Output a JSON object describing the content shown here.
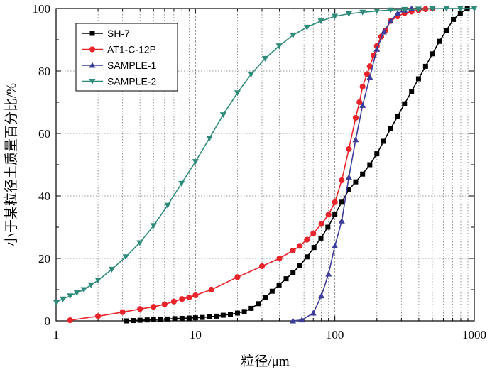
{
  "chart_data": {
    "type": "line",
    "xscale": "log",
    "xlim": [
      1,
      1000
    ],
    "ylim": [
      0,
      100
    ],
    "grid": true,
    "legend_position": "top-left",
    "xlabel": "粒径/μm",
    "ylabel": "小于某粒径土质量百分比/%",
    "xticks": [
      1,
      10,
      100,
      1000
    ],
    "xtick_labels": [
      "1",
      "10",
      "100",
      "1000"
    ],
    "yticks": [
      0,
      20,
      40,
      60,
      80,
      100
    ],
    "ytick_labels": [
      "0",
      "20",
      "40",
      "60",
      "80",
      "100"
    ],
    "series": [
      {
        "name": "SH-7",
        "color": "#000000",
        "marker": "square",
        "points": [
          [
            3.2,
            0.0
          ],
          [
            3.6,
            0.1
          ],
          [
            4.0,
            0.2
          ],
          [
            4.5,
            0.3
          ],
          [
            5.0,
            0.4
          ],
          [
            5.6,
            0.5
          ],
          [
            6.3,
            0.6
          ],
          [
            7.1,
            0.7
          ],
          [
            8.0,
            0.8
          ],
          [
            9.0,
            0.9
          ],
          [
            10.0,
            1.0
          ],
          [
            11.2,
            1.1
          ],
          [
            12.6,
            1.3
          ],
          [
            14.1,
            1.5
          ],
          [
            15.8,
            1.8
          ],
          [
            17.8,
            2.1
          ],
          [
            20.0,
            2.5
          ],
          [
            22.4,
            3.0
          ],
          [
            25.1,
            4.0
          ],
          [
            28.2,
            5.5
          ],
          [
            31.6,
            7.5
          ],
          [
            35.5,
            9.5
          ],
          [
            39.8,
            11.5
          ],
          [
            44.7,
            13.5
          ],
          [
            50.1,
            15.5
          ],
          [
            56.2,
            17.8
          ],
          [
            63.1,
            20.5
          ],
          [
            70.8,
            23.5
          ],
          [
            79.4,
            26.5
          ],
          [
            89.1,
            30.0
          ],
          [
            100,
            34.0
          ],
          [
            112,
            38.0
          ],
          [
            126,
            42.0
          ],
          [
            141,
            44.5
          ],
          [
            158,
            47.0
          ],
          [
            178,
            50.0
          ],
          [
            200,
            53.5
          ],
          [
            224,
            57.5
          ],
          [
            251,
            61.5
          ],
          [
            282,
            65.5
          ],
          [
            316,
            69.5
          ],
          [
            355,
            73.5
          ],
          [
            398,
            77.5
          ],
          [
            447,
            81.5
          ],
          [
            501,
            85.5
          ],
          [
            562,
            89.5
          ],
          [
            631,
            93.0
          ],
          [
            708,
            96.5
          ],
          [
            794,
            98.5
          ],
          [
            891,
            100
          ]
        ]
      },
      {
        "name": "AT1-C-12P",
        "color": "#e8242a",
        "marker": "circle",
        "points": [
          [
            1.26,
            0.2
          ],
          [
            2.0,
            1.5
          ],
          [
            3.0,
            2.8
          ],
          [
            4.0,
            3.8
          ],
          [
            5.0,
            4.5
          ],
          [
            6.0,
            5.3
          ],
          [
            7.0,
            6.2
          ],
          [
            8.0,
            7.0
          ],
          [
            9.0,
            7.5
          ],
          [
            10.0,
            8.2
          ],
          [
            13.0,
            10.0
          ],
          [
            20.0,
            14.0
          ],
          [
            30.0,
            17.5
          ],
          [
            40.0,
            20.0
          ],
          [
            50.0,
            22.5
          ],
          [
            56.0,
            24.0
          ],
          [
            63.0,
            26.0
          ],
          [
            70.0,
            28.0
          ],
          [
            80.0,
            31.0
          ],
          [
            90.0,
            34.0
          ],
          [
            100.0,
            38.0
          ],
          [
            112,
            45.0
          ],
          [
            126,
            55.0
          ],
          [
            141,
            65.0
          ],
          [
            150,
            70.0
          ],
          [
            158,
            75.0
          ],
          [
            170,
            79.0
          ],
          [
            178,
            81.5
          ],
          [
            190,
            85.0
          ],
          [
            200,
            88.0
          ],
          [
            215,
            91.0
          ],
          [
            230,
            93.0
          ],
          [
            251,
            96.0
          ],
          [
            282,
            97.5
          ],
          [
            316,
            98.5
          ],
          [
            355,
            99.0
          ],
          [
            398,
            99.5
          ],
          [
            447,
            99.8
          ],
          [
            501,
            100
          ]
        ]
      },
      {
        "name": "SAMPLE-1",
        "color": "#3c3c9a",
        "marker": "triangle-up",
        "points": [
          [
            50,
            0.0
          ],
          [
            58,
            0.3
          ],
          [
            70,
            2.5
          ],
          [
            80,
            8.0
          ],
          [
            90,
            15.0
          ],
          [
            100,
            24.0
          ],
          [
            112,
            32.0
          ],
          [
            126,
            46.0
          ],
          [
            141,
            58.0
          ],
          [
            158,
            69.0
          ],
          [
            178,
            78.0
          ],
          [
            200,
            87.0
          ],
          [
            224,
            92.5
          ],
          [
            251,
            96.0
          ],
          [
            282,
            98.5
          ],
          [
            316,
            99.5
          ],
          [
            355,
            100
          ]
        ]
      },
      {
        "name": "SAMPLE-2",
        "color": "#2e8b7a",
        "marker": "triangle-down",
        "points": [
          [
            1.0,
            6.0
          ],
          [
            1.12,
            7.0
          ],
          [
            1.26,
            8.0
          ],
          [
            1.41,
            9.0
          ],
          [
            1.58,
            10.0
          ],
          [
            1.78,
            11.5
          ],
          [
            2.0,
            13.0
          ],
          [
            2.51,
            16.5
          ],
          [
            3.16,
            20.5
          ],
          [
            3.98,
            25.0
          ],
          [
            5.01,
            30.5
          ],
          [
            6.31,
            37.0
          ],
          [
            7.94,
            44.0
          ],
          [
            10.0,
            51.0
          ],
          [
            12.6,
            58.5
          ],
          [
            15.8,
            66.0
          ],
          [
            20.0,
            73.0
          ],
          [
            25.1,
            79.0
          ],
          [
            31.6,
            84.0
          ],
          [
            39.8,
            88.0
          ],
          [
            50.1,
            91.5
          ],
          [
            63.1,
            94.0
          ],
          [
            79.4,
            96.0
          ],
          [
            100,
            97.5
          ],
          [
            126,
            98.3
          ],
          [
            158,
            98.8
          ],
          [
            200,
            99.2
          ],
          [
            251,
            99.5
          ],
          [
            316,
            99.7
          ],
          [
            398,
            99.8
          ],
          [
            501,
            99.9
          ],
          [
            631,
            100
          ],
          [
            794,
            100
          ],
          [
            1000,
            100
          ]
        ]
      }
    ]
  }
}
